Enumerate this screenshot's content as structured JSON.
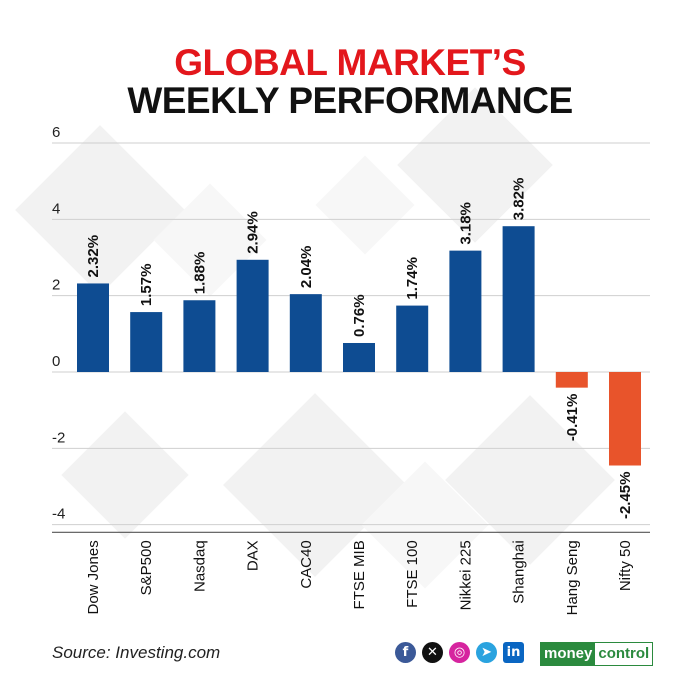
{
  "header": {
    "title_line1": "GLOBAL MARKET’S",
    "title_line2": "WEEKLY PERFORMANCE"
  },
  "footer": {
    "source": "Source: Investing.com",
    "social_icons": [
      "facebook-icon",
      "x-icon",
      "instagram-icon",
      "telegram-icon",
      "linkedin-icon"
    ],
    "brand_part1": "money",
    "brand_part2": "control"
  },
  "colors": {
    "positive": "#0e4c92",
    "negative": "#e8542b",
    "title_accent": "#e3171c",
    "brand_green": "#2b8a3e"
  },
  "chart_data": {
    "type": "bar",
    "categories": [
      "Dow Jones",
      "S&P500",
      "Nasdaq",
      "DAX",
      "CAC40",
      "FTSE MIB",
      "FTSE 100",
      "Nikkei 225",
      "Shanghai",
      "Hang Seng",
      "Nifty 50"
    ],
    "values": [
      2.32,
      1.57,
      1.88,
      2.94,
      2.04,
      0.76,
      1.74,
      3.18,
      3.82,
      -0.41,
      -2.45
    ],
    "data_labels": [
      "2.32%",
      "1.57%",
      "1.88%",
      "2.94%",
      "2.04%",
      "0.76%",
      "1.74%",
      "3.18%",
      "3.82%",
      "-0.41%",
      "-2.45%"
    ],
    "yticks": [
      6,
      4,
      2,
      0,
      -2,
      -4
    ],
    "ylim": [
      -4.2,
      6
    ],
    "title": "GLOBAL MARKET’S WEEKLY PERFORMANCE",
    "xlabel": "",
    "ylabel": "",
    "grid": true,
    "legend": "none"
  }
}
